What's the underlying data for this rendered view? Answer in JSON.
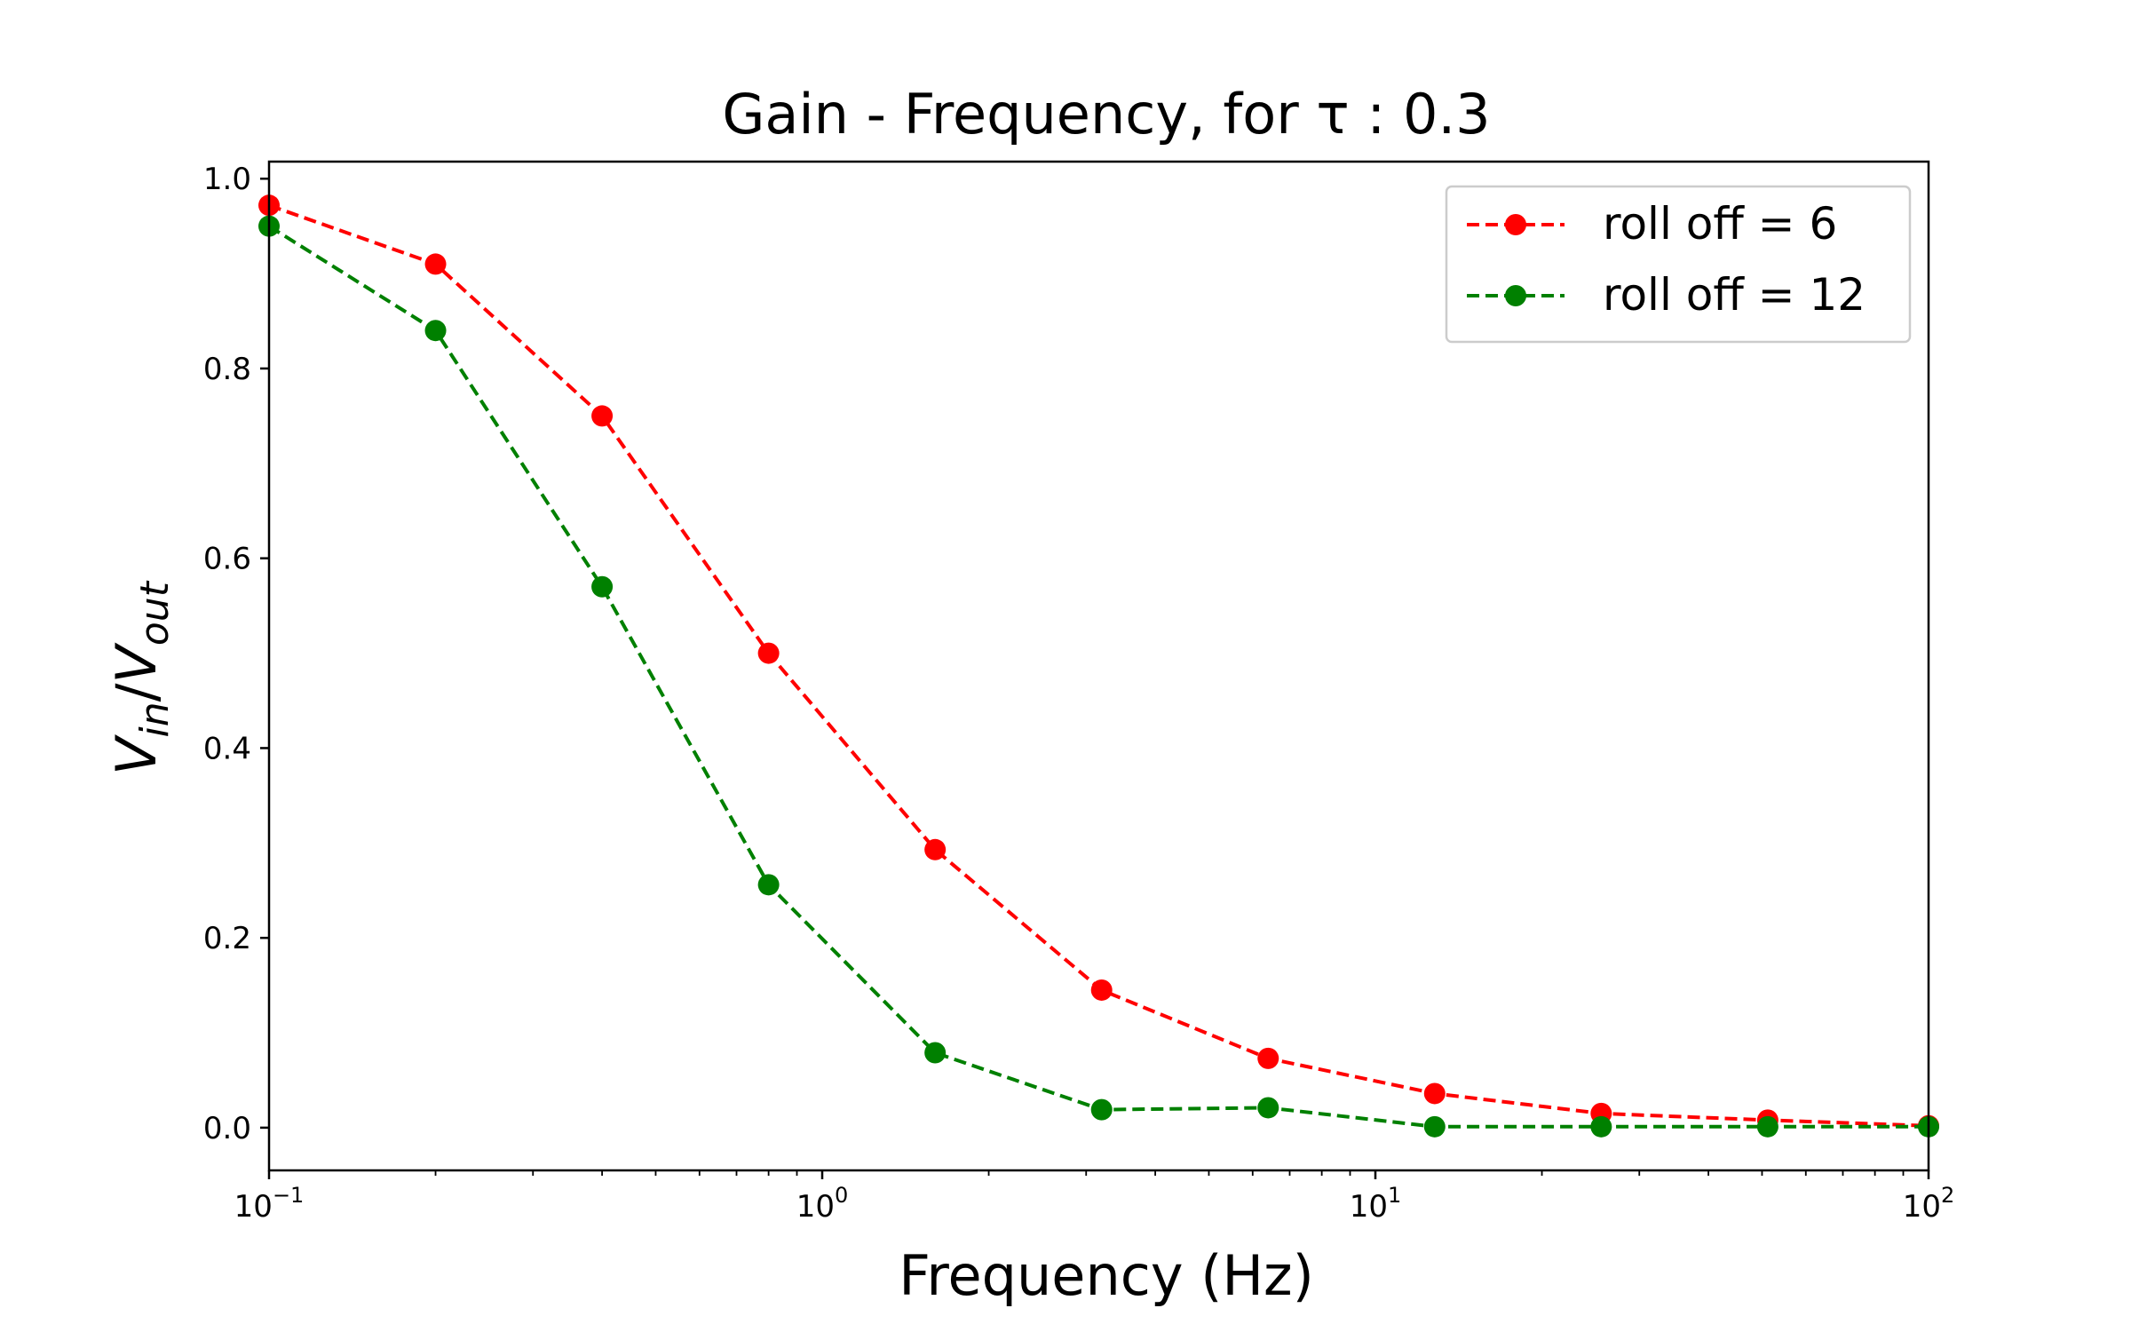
{
  "chart_data": {
    "type": "line",
    "title": "Gain - Frequency, for τ : 0.3",
    "xlabel": "Frequency (Hz)",
    "ylabel": {
      "base": "V",
      "sub_in": "in",
      "sep": "/",
      "sub_out": "out"
    },
    "x_scale": "log",
    "xlim": [
      0.1,
      100
    ],
    "ylim": [
      -0.045,
      1.018
    ],
    "x_ticks": [
      {
        "value": 0.1,
        "base": "10",
        "exp": "−1"
      },
      {
        "value": 1,
        "base": "10",
        "exp": "0"
      },
      {
        "value": 10,
        "base": "10",
        "exp": "1"
      },
      {
        "value": 100,
        "base": "10",
        "exp": "2"
      }
    ],
    "y_ticks": [
      {
        "value": 0.0,
        "label": "0.0"
      },
      {
        "value": 0.2,
        "label": "0.2"
      },
      {
        "value": 0.4,
        "label": "0.4"
      },
      {
        "value": 0.6,
        "label": "0.6"
      },
      {
        "value": 0.8,
        "label": "0.8"
      },
      {
        "value": 1.0,
        "label": "1.0"
      }
    ],
    "x": [
      0.1,
      0.2,
      0.4,
      0.8,
      1.6,
      3.2,
      6.4,
      12.8,
      25.6,
      51.2,
      100
    ],
    "series": [
      {
        "name": "roll off = 6",
        "color": "#ff0000",
        "values": [
          0.972,
          0.91,
          0.75,
          0.5,
          0.293,
          0.145,
          0.073,
          0.036,
          0.015,
          0.008,
          0.002
        ]
      },
      {
        "name": "roll off = 12",
        "color": "#008000",
        "values": [
          0.95,
          0.84,
          0.57,
          0.256,
          0.079,
          0.019,
          0.021,
          0.001,
          0.001,
          0.001,
          0.001
        ]
      }
    ],
    "legend_position": "top-right",
    "grid": false
  }
}
